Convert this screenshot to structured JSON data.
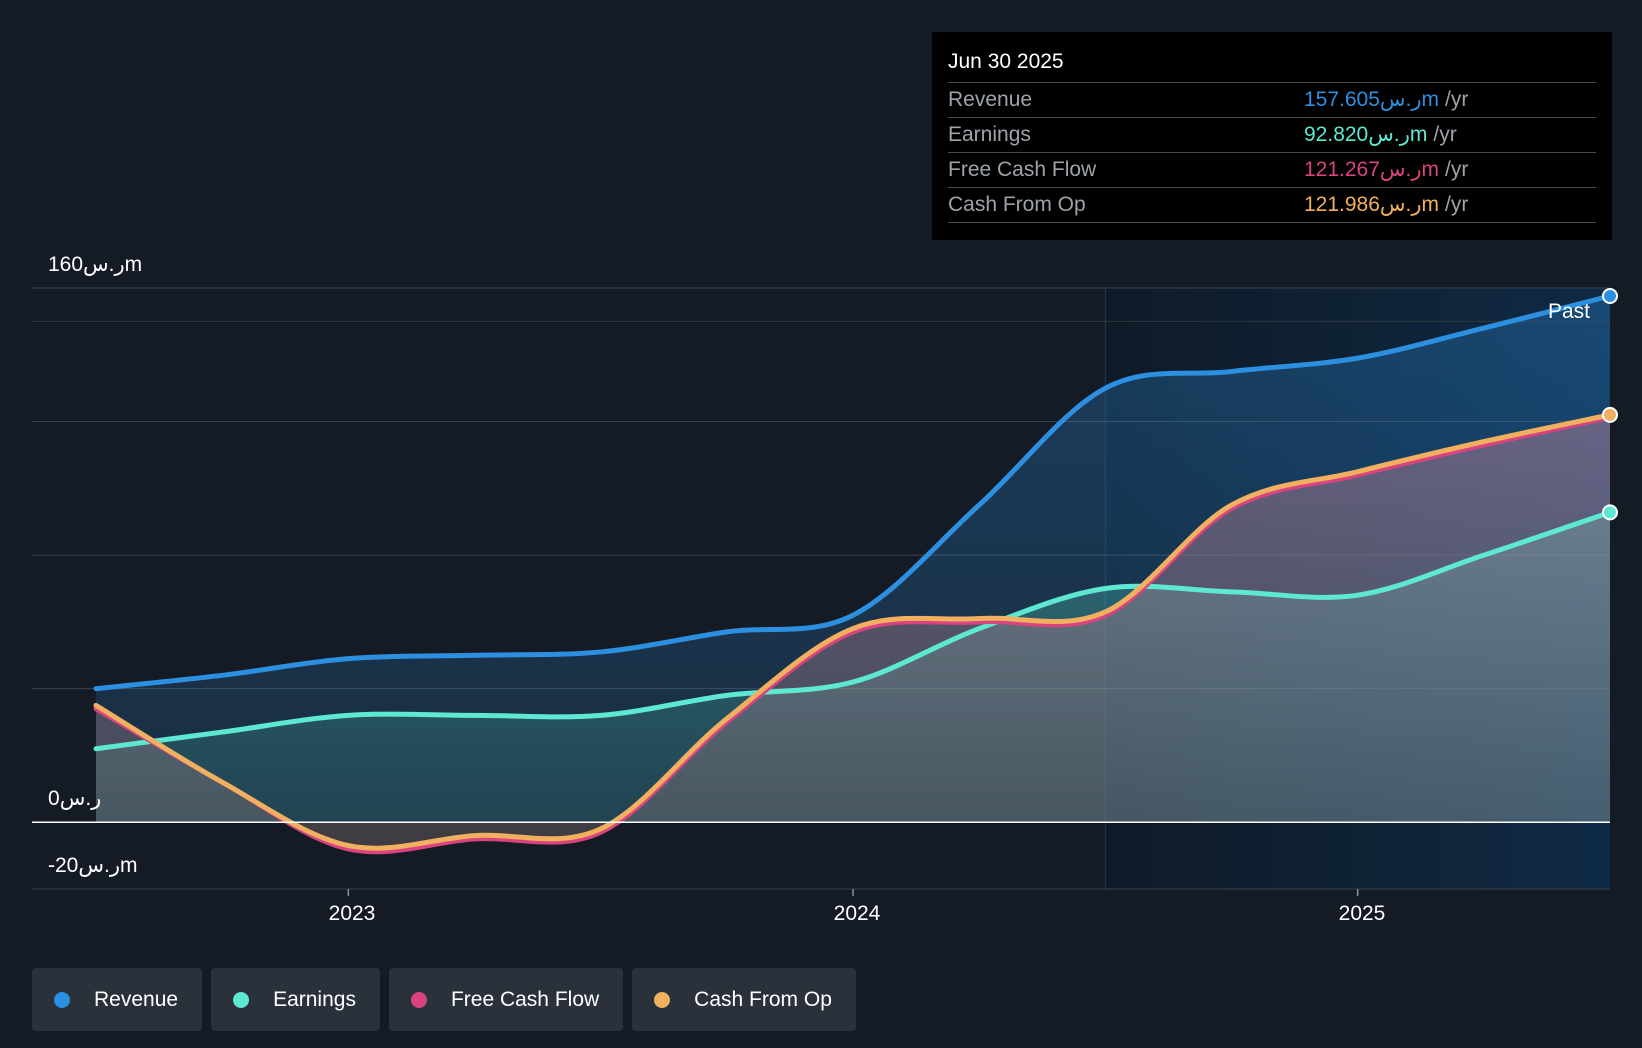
{
  "tooltip": {
    "date": "Jun 30 2025",
    "rows": [
      {
        "label": "Revenue",
        "value": "157.605ر.سm",
        "unit": "/yr"
      },
      {
        "label": "Earnings",
        "value": "92.820ر.سm",
        "unit": "/yr"
      },
      {
        "label": "Free Cash Flow",
        "value": "121.267ر.سm",
        "unit": "/yr"
      },
      {
        "label": "Cash From Op",
        "value": "121.986ر.سm",
        "unit": "/yr"
      }
    ]
  },
  "past_label": "Past",
  "legend": {
    "revenue": "Revenue",
    "earnings": "Earnings",
    "fcf": "Free Cash Flow",
    "cfo": "Cash From Op"
  },
  "colors": {
    "revenue": "#2d8fe0",
    "earnings": "#5ee8d2",
    "fcf": "#d9437f",
    "cfo": "#f0b060"
  },
  "chart_data": {
    "type": "area",
    "title": "",
    "y_tick_labels": {
      "top": "160ر.سm",
      "zero": "0ر.س",
      "bottom": "-20ر.سm"
    },
    "ylim": [
      -20,
      160
    ],
    "x_tick_labels": [
      "2023",
      "2024",
      "2025"
    ],
    "x_tick_values": [
      2023.0,
      2024.0,
      2025.0
    ],
    "xlim": [
      2022.5,
      2025.5
    ],
    "past_region_start": 2024.5,
    "series": [
      {
        "name": "Revenue",
        "key": "revenue",
        "x": [
          2022.5,
          2022.75,
          2023.0,
          2023.25,
          2023.5,
          2023.75,
          2024.0,
          2024.25,
          2024.5,
          2024.75,
          2025.0,
          2025.25,
          2025.5
        ],
        "values": [
          40,
          44,
          49,
          50,
          51,
          57,
          62,
          95,
          130,
          135,
          139,
          148,
          157.6
        ]
      },
      {
        "name": "Earnings",
        "key": "earnings",
        "x": [
          2022.5,
          2022.75,
          2023.0,
          2023.25,
          2023.5,
          2023.75,
          2024.0,
          2024.25,
          2024.5,
          2024.75,
          2025.0,
          2025.25,
          2025.5
        ],
        "values": [
          22,
          27,
          32,
          32,
          32,
          38,
          42,
          58,
          70,
          69,
          68,
          80,
          92.8
        ]
      },
      {
        "name": "Free Cash Flow",
        "key": "fcf",
        "x": [
          2022.5,
          2022.75,
          2023.0,
          2023.25,
          2023.5,
          2023.75,
          2024.0,
          2024.25,
          2024.5,
          2024.75,
          2025.0,
          2025.25,
          2025.5
        ],
        "values": [
          34,
          12,
          -8,
          -5,
          -3,
          30,
          57,
          60,
          62,
          94,
          104,
          113,
          121.3
        ]
      },
      {
        "name": "Cash From Op",
        "key": "cfo",
        "x": [
          2022.5,
          2022.75,
          2023.0,
          2023.25,
          2023.5,
          2023.75,
          2024.0,
          2024.25,
          2024.5,
          2024.75,
          2025.0,
          2025.25,
          2025.5
        ],
        "values": [
          35,
          12,
          -7,
          -4,
          -2,
          31,
          58,
          61,
          63,
          95,
          105,
          114,
          122.0
        ]
      }
    ]
  }
}
